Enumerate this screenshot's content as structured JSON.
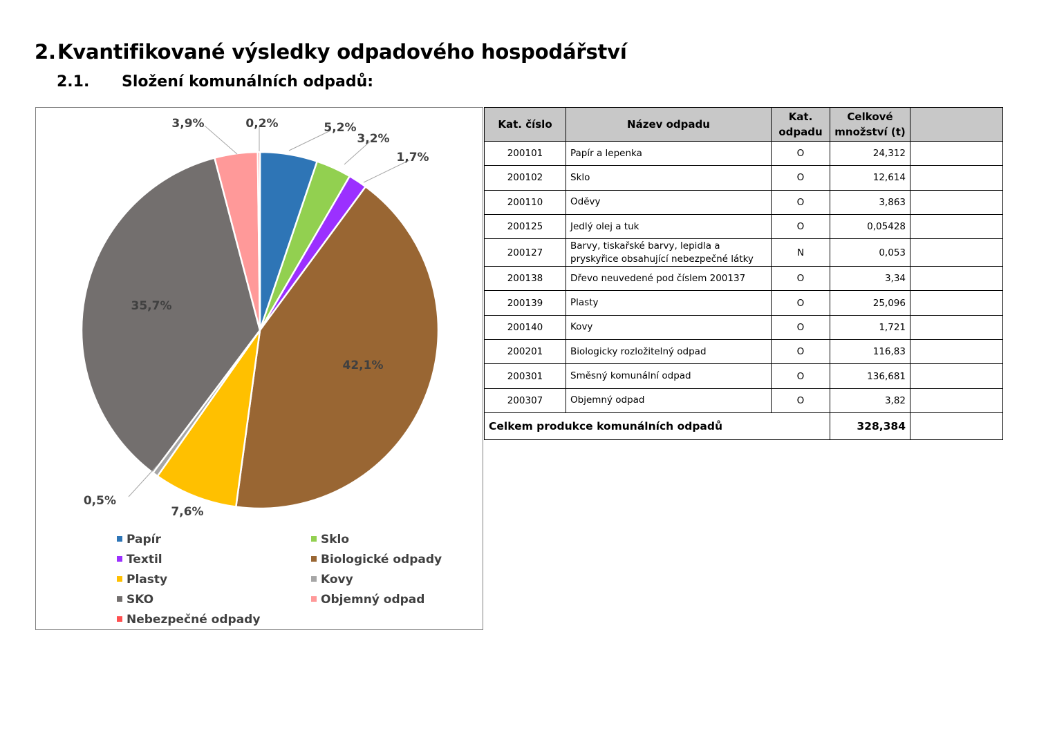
{
  "headings": {
    "h1_num": "2.",
    "h1_text": "Kvantifikované výsledky odpadového hospodářství",
    "h2_num": "2.1.",
    "h2_text": "Složení komunálních odpadů:"
  },
  "chart_data": {
    "type": "pie",
    "categories": [
      "Papír",
      "Sklo",
      "Textil",
      "Biologické odpady",
      "Plasty",
      "Kovy",
      "SKO",
      "Objemný odpad",
      "Nebezpečné odpady"
    ],
    "values": [
      5.2,
      3.2,
      1.7,
      42.1,
      7.6,
      0.5,
      35.7,
      3.9,
      0.2
    ],
    "labels": [
      "5,2%",
      "3,2%",
      "1,7%",
      "42,1%",
      "7,6%",
      "0,5%",
      "35,7%",
      "3,9%",
      "0,2%"
    ],
    "colors": [
      "#2e75b6",
      "#92d050",
      "#9b30ff",
      "#996633",
      "#ffc000",
      "#a6a6a6",
      "#736f6e",
      "#ff9999",
      "#ff5050"
    ],
    "legend_position": "bottom"
  },
  "table": {
    "headers": [
      "Kat. číslo",
      "Název odpadu",
      "Kat. odpadu",
      "Celkové množství (t)",
      ""
    ],
    "rows": [
      {
        "code": "200101",
        "name": "Papír a lepenka",
        "cat": "O",
        "amount": "24,312"
      },
      {
        "code": "200102",
        "name": "Sklo",
        "cat": "O",
        "amount": "12,614"
      },
      {
        "code": "200110",
        "name": "Oděvy",
        "cat": "O",
        "amount": "3,863"
      },
      {
        "code": "200125",
        "name": "Jedlý olej a tuk",
        "cat": "O",
        "amount": "0,05428"
      },
      {
        "code": "200127",
        "name": "Barvy, tiskařské barvy, lepidla a pryskyřice obsahující nebezpečné látky",
        "cat": "N",
        "amount": "0,053"
      },
      {
        "code": "200138",
        "name": "Dřevo neuvedené pod číslem 200137",
        "cat": "O",
        "amount": "3,34"
      },
      {
        "code": "200139",
        "name": "Plasty",
        "cat": "O",
        "amount": "25,096"
      },
      {
        "code": "200140",
        "name": "Kovy",
        "cat": "O",
        "amount": "1,721"
      },
      {
        "code": "200201",
        "name": "Biologicky rozložitelný odpad",
        "cat": "O",
        "amount": "116,83"
      },
      {
        "code": "200301",
        "name": "Směsný komunální odpad",
        "cat": "O",
        "amount": "136,681"
      },
      {
        "code": "200307",
        "name": "Objemný odpad",
        "cat": "O",
        "amount": "3,82"
      }
    ],
    "total_label": "Celkem produkce komunálních odpadů",
    "total_amount": "328,384"
  }
}
